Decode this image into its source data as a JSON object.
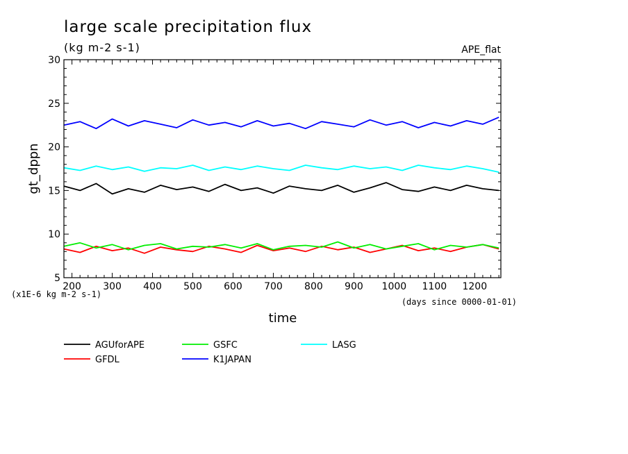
{
  "chart_data": {
    "type": "line",
    "title": "large scale precipitation flux",
    "subtitle": "(kg m-2 s-1)",
    "tag": "APE_flat",
    "xlabel": "time",
    "ylabel": "gt_dppn",
    "y_multiplier_label": "(x1E-6 kg m-2 s-1)",
    "x_unit_label": "(days since 0000-01-01)",
    "xlim": [
      180,
      1265
    ],
    "ylim": [
      5,
      30
    ],
    "x_ticks": [
      200,
      300,
      400,
      500,
      600,
      700,
      800,
      900,
      1000,
      1100,
      1200
    ],
    "y_ticks": [
      5,
      10,
      15,
      20,
      25,
      30
    ],
    "grid": false,
    "legend_position": "bottom-left",
    "series": [
      {
        "name": "AGUforAPE",
        "color": "#000000",
        "x": [
          180,
          220,
          260,
          300,
          340,
          380,
          420,
          460,
          500,
          540,
          580,
          620,
          660,
          700,
          740,
          780,
          820,
          860,
          900,
          940,
          980,
          1020,
          1060,
          1100,
          1140,
          1180,
          1220,
          1260
        ],
        "values": [
          15.5,
          15.0,
          15.8,
          14.6,
          15.2,
          14.8,
          15.6,
          15.1,
          15.4,
          14.9,
          15.7,
          15.0,
          15.3,
          14.7,
          15.5,
          15.2,
          15.0,
          15.6,
          14.8,
          15.3,
          15.9,
          15.1,
          14.9,
          15.4,
          15.0,
          15.6,
          15.2,
          15.0
        ]
      },
      {
        "name": "GFDL",
        "color": "#ff0000",
        "x": [
          180,
          220,
          260,
          300,
          340,
          380,
          420,
          460,
          500,
          540,
          580,
          620,
          660,
          700,
          740,
          780,
          820,
          860,
          900,
          940,
          980,
          1020,
          1060,
          1100,
          1140,
          1180,
          1220,
          1260
        ],
        "values": [
          8.3,
          7.9,
          8.6,
          8.1,
          8.4,
          7.8,
          8.5,
          8.2,
          8.0,
          8.6,
          8.3,
          7.9,
          8.7,
          8.1,
          8.4,
          8.0,
          8.6,
          8.2,
          8.5,
          7.9,
          8.3,
          8.7,
          8.1,
          8.4,
          8.0,
          8.5,
          8.8,
          8.3
        ]
      },
      {
        "name": "GSFC",
        "color": "#00ee00",
        "x": [
          180,
          220,
          260,
          300,
          340,
          380,
          420,
          460,
          500,
          540,
          580,
          620,
          660,
          700,
          740,
          780,
          820,
          860,
          900,
          940,
          980,
          1020,
          1060,
          1100,
          1140,
          1180,
          1220,
          1260
        ],
        "values": [
          8.6,
          9.0,
          8.4,
          8.8,
          8.2,
          8.7,
          8.9,
          8.3,
          8.6,
          8.5,
          8.8,
          8.4,
          8.9,
          8.2,
          8.6,
          8.7,
          8.5,
          9.1,
          8.4,
          8.8,
          8.3,
          8.6,
          8.9,
          8.2,
          8.7,
          8.5,
          8.8,
          8.4
        ]
      },
      {
        "name": "K1JAPAN",
        "color": "#0000ff",
        "x": [
          180,
          220,
          260,
          300,
          340,
          380,
          420,
          460,
          500,
          540,
          580,
          620,
          660,
          700,
          740,
          780,
          820,
          860,
          900,
          940,
          980,
          1020,
          1060,
          1100,
          1140,
          1180,
          1220,
          1260
        ],
        "values": [
          22.5,
          22.9,
          22.1,
          23.2,
          22.4,
          23.0,
          22.6,
          22.2,
          23.1,
          22.5,
          22.8,
          22.3,
          23.0,
          22.4,
          22.7,
          22.1,
          22.9,
          22.6,
          22.3,
          23.1,
          22.5,
          22.9,
          22.2,
          22.8,
          22.4,
          23.0,
          22.6,
          23.4
        ]
      },
      {
        "name": "LASG",
        "color": "#00ffff",
        "x": [
          180,
          220,
          260,
          300,
          340,
          380,
          420,
          460,
          500,
          540,
          580,
          620,
          660,
          700,
          740,
          780,
          820,
          860,
          900,
          940,
          980,
          1020,
          1060,
          1100,
          1140,
          1180,
          1220,
          1260
        ],
        "values": [
          17.6,
          17.3,
          17.8,
          17.4,
          17.7,
          17.2,
          17.6,
          17.5,
          17.9,
          17.3,
          17.7,
          17.4,
          17.8,
          17.5,
          17.3,
          17.9,
          17.6,
          17.4,
          17.8,
          17.5,
          17.7,
          17.3,
          17.9,
          17.6,
          17.4,
          17.8,
          17.5,
          17.1
        ]
      }
    ]
  }
}
